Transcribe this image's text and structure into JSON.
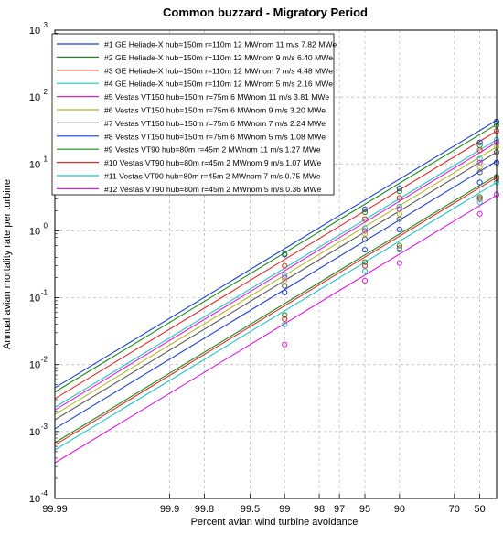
{
  "chart_data": {
    "type": "line",
    "title": "Common buzzard - Migratory Period",
    "xlabel": "Percent avian wind turbine avoidance",
    "ylabel": "Annual avian mortality rate per turbine",
    "x_scale": "log-reverse (axis shows avoidance %, i.e. log of 100 - avoidance)",
    "y_scale": "log",
    "xlim": [
      99.99,
      30
    ],
    "ylim": [
      0.0001,
      1000
    ],
    "x_ticks": [
      "99.99",
      "99.9",
      "99.8",
      "99.5",
      "99",
      "98",
      "97",
      "95",
      "90",
      "70",
      "50"
    ],
    "y_ticks": [
      {
        "base": "10",
        "exp": "-4",
        "value": 0.0001
      },
      {
        "base": "10",
        "exp": "-3",
        "value": 0.001
      },
      {
        "base": "10",
        "exp": "-2",
        "value": 0.01
      },
      {
        "base": "10",
        "exp": "-1",
        "value": 0.1
      },
      {
        "base": "10",
        "exp": "0",
        "value": 1
      },
      {
        "base": "10",
        "exp": "1",
        "value": 10
      },
      {
        "base": "10",
        "exp": "2",
        "value": 100
      },
      {
        "base": "10",
        "exp": "3",
        "value": 1000
      }
    ],
    "grid": true,
    "legend_position": "top-left",
    "marker_x": [
      99,
      95,
      90,
      50,
      30
    ],
    "series": [
      {
        "name": "#1 GE Heliade-X hub=150m r=110m 12 MWnom 11 m/s 7.82 MWe",
        "color": "#1f3fd6",
        "line_x": [
          99.99,
          30
        ],
        "line_y": [
          0.0045,
          45
        ],
        "points": [
          0.44,
          2.1,
          4.3,
          21,
          43
        ]
      },
      {
        "name": "#2 GE Heliade-X hub=150m r=110m 12 MWnom 9 m/s 6.40 MWe",
        "color": "#1a8a1a",
        "line_x": [
          99.99,
          30
        ],
        "line_y": [
          0.0039,
          39
        ],
        "points": [
          0.45,
          1.9,
          3.9,
          19,
          38
        ]
      },
      {
        "name": "#3 GE Heliade-X hub=150m r=110m 12 MWnom 7 m/s 4.48 MWe",
        "color": "#e32b2b",
        "line_x": [
          99.99,
          30
        ],
        "line_y": [
          0.0031,
          31
        ],
        "points": [
          0.3,
          1.5,
          3.1,
          16,
          31
        ]
      },
      {
        "name": "#4 GE Heliade-X hub=150m r=110m 12 MWnom 5 m/s 2.16 MWe",
        "color": "#22c4c4",
        "line_x": [
          99.99,
          30
        ],
        "line_y": [
          0.0023,
          23
        ],
        "points": [
          0.22,
          1.1,
          2.3,
          12,
          23
        ]
      },
      {
        "name": "#5 Vestas VT150 hub=150m r=75m 6 MWnom 11 m/s 3.81 MWe",
        "color": "#e01ee0",
        "line_x": [
          99.99,
          30
        ],
        "line_y": [
          0.0021,
          21
        ],
        "points": [
          0.2,
          1.0,
          2.1,
          10.5,
          21
        ]
      },
      {
        "name": "#6 Vestas VT150 hub=150m r=75m 6 MWnom 9 m/s 3.20 MWe",
        "color": "#b8b82a",
        "line_x": [
          99.99,
          30
        ],
        "line_y": [
          0.0018,
          18
        ],
        "points": [
          0.18,
          0.9,
          1.8,
          9,
          18
        ]
      },
      {
        "name": "#7 Vestas VT150 hub=150m r=75m 6 MWnom 7 m/s 2.24 MWe",
        "color": "#5a5a5a",
        "line_x": [
          99.99,
          30
        ],
        "line_y": [
          0.0015,
          15
        ],
        "points": [
          0.15,
          0.75,
          1.5,
          7.5,
          15
        ]
      },
      {
        "name": "#8 Vestas VT150 hub=150m r=75m 6 MWnom 5 m/s 1.08 MWe",
        "color": "#1f3fd6",
        "line_x": [
          99.99,
          30
        ],
        "line_y": [
          0.0011,
          11
        ],
        "points": [
          0.12,
          0.52,
          1.05,
          5.3,
          10.5
        ]
      },
      {
        "name": "#9 Vestas VT90 hub=80m r=45m 2 MWnom 11 m/s 1.27 MWe",
        "color": "#1a8a1a",
        "line_x": [
          99.99,
          30
        ],
        "line_y": [
          0.00068,
          6.8
        ],
        "points": [
          0.055,
          0.34,
          0.6,
          3.2,
          6.4
        ]
      },
      {
        "name": "#10 Vestas VT90 hub=80m r=45m 2 MWnom 9 m/s 1.07 MWe",
        "color": "#e32b2b",
        "line_x": [
          99.99,
          30
        ],
        "line_y": [
          0.00063,
          6.3
        ],
        "points": [
          0.048,
          0.3,
          0.55,
          3.0,
          6.0
        ]
      },
      {
        "name": "#11 Vestas VT90 hub=80m r=45m 2 MWnom 7 m/s 0.75 MWe",
        "color": "#22c4c4",
        "line_x": [
          99.99,
          30
        ],
        "line_y": [
          0.00053,
          5.3
        ],
        "points": [
          0.04,
          0.25,
          0.52,
          2.7,
          5.3
        ]
      },
      {
        "name": "#12 Vestas VT90 hub=80m r=45m 2 MWnom 5 m/s 0.36 MWe",
        "color": "#e01ee0",
        "line_x": [
          99.99,
          30
        ],
        "line_y": [
          0.00034,
          3.4
        ],
        "points": [
          0.02,
          0.18,
          0.33,
          1.8,
          3.5
        ]
      }
    ]
  }
}
